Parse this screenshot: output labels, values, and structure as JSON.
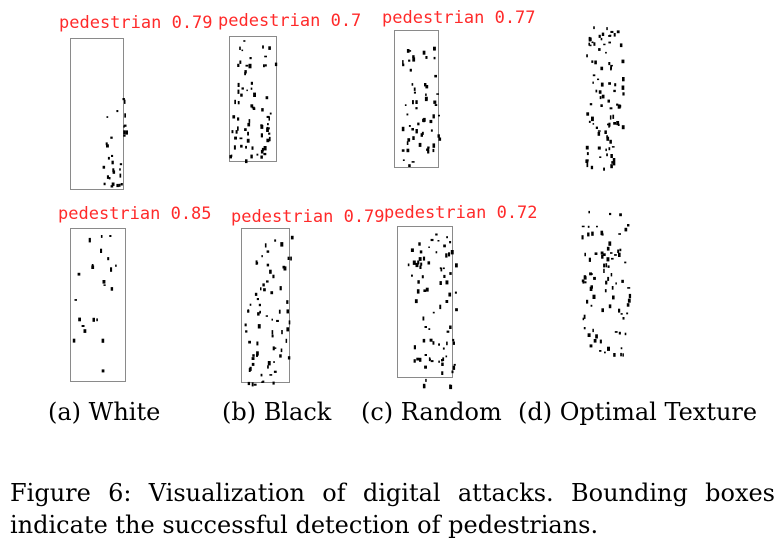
{
  "detections": [
    {
      "label": "pedestrian 0.79"
    },
    {
      "label": "pedestrian 0.7"
    },
    {
      "label": "pedestrian 0.77"
    },
    {
      "label": "pedestrian 0.85"
    },
    {
      "label": "pedestrian 0.79"
    },
    {
      "label": "pedestrian 0.72"
    }
  ],
  "panel_captions": [
    "(a) White",
    "(b) Black",
    "(c) Random",
    "(d) Optimal Texture"
  ],
  "caption": "Figure 6: Visualization of digital attacks. Bounding boxes indicate the successful detection of pedestrians.",
  "colors": {
    "detection_label": "#ff2a2a",
    "bbox": "#8a8a8a",
    "points": "#000000"
  }
}
